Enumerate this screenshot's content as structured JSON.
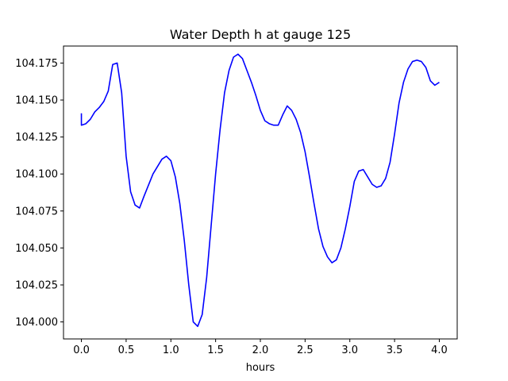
{
  "chart_data": {
    "type": "line",
    "title": "Water Depth h at gauge 125",
    "xlabel": "hours",
    "ylabel": "",
    "xlim": [
      -0.2,
      4.2
    ],
    "ylim": [
      103.9885,
      104.1865
    ],
    "x_ticks": [
      "0.0",
      "0.5",
      "1.0",
      "1.5",
      "2.0",
      "2.5",
      "3.0",
      "3.5",
      "4.0"
    ],
    "y_ticks": [
      "104.000",
      "104.025",
      "104.050",
      "104.075",
      "104.100",
      "104.125",
      "104.150",
      "104.175"
    ],
    "grid": false,
    "legend": "none",
    "series": [
      {
        "color": "#0000ff",
        "x": [
          0.0,
          0.0,
          0.05,
          0.1,
          0.15,
          0.2,
          0.25,
          0.3,
          0.35,
          0.4,
          0.45,
          0.5,
          0.55,
          0.6,
          0.65,
          0.7,
          0.8,
          0.9,
          0.95,
          1.0,
          1.05,
          1.1,
          1.15,
          1.2,
          1.25,
          1.3,
          1.35,
          1.4,
          1.45,
          1.5,
          1.55,
          1.6,
          1.65,
          1.7,
          1.75,
          1.8,
          1.85,
          1.9,
          1.95,
          2.0,
          2.05,
          2.1,
          2.15,
          2.2,
          2.25,
          2.3,
          2.35,
          2.4,
          2.45,
          2.5,
          2.55,
          2.6,
          2.65,
          2.7,
          2.75,
          2.8,
          2.85,
          2.9,
          2.95,
          3.0,
          3.05,
          3.1,
          3.15,
          3.2,
          3.25,
          3.3,
          3.35,
          3.4,
          3.45,
          3.5,
          3.55,
          3.6,
          3.65,
          3.7,
          3.75,
          3.8,
          3.85,
          3.9,
          3.95,
          4.0
        ],
        "y": [
          104.141,
          104.133,
          104.134,
          104.137,
          104.142,
          104.145,
          104.149,
          104.156,
          104.174,
          104.175,
          104.155,
          104.112,
          104.088,
          104.079,
          104.077,
          104.085,
          104.1,
          104.11,
          104.112,
          104.109,
          104.098,
          104.08,
          104.055,
          104.025,
          104.0,
          103.997,
          104.005,
          104.03,
          104.065,
          104.1,
          104.13,
          104.155,
          104.17,
          104.179,
          104.181,
          104.178,
          104.17,
          104.162,
          104.153,
          104.143,
          104.136,
          104.134,
          104.133,
          104.133,
          104.14,
          104.146,
          104.143,
          104.137,
          104.128,
          104.115,
          104.098,
          104.08,
          104.063,
          104.051,
          104.044,
          104.04,
          104.042,
          104.05,
          104.063,
          104.078,
          104.095,
          104.102,
          104.103,
          104.098,
          104.093,
          104.091,
          104.092,
          104.097,
          104.108,
          104.127,
          104.148,
          104.162,
          104.171,
          104.176,
          104.177,
          104.176,
          104.172,
          104.163,
          104.16,
          104.162
        ]
      }
    ]
  }
}
